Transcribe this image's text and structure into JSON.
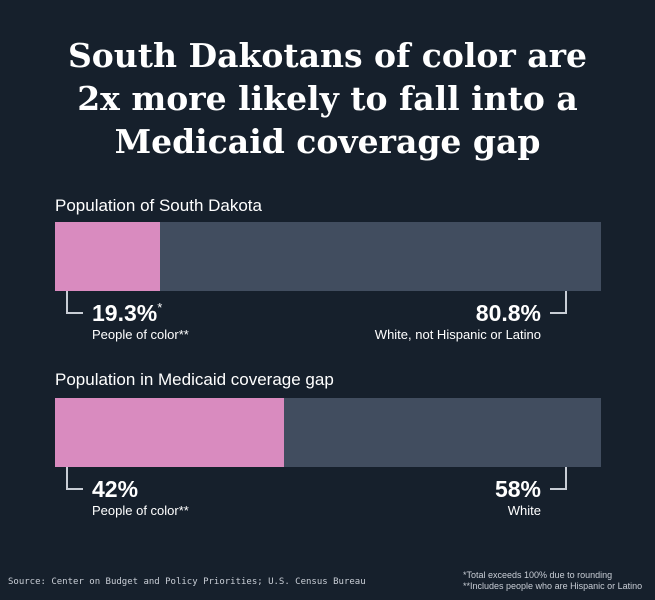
{
  "title_lines": [
    "South Dakotans of color are",
    "2x more likely to fall into a",
    "Medicaid coverage gap"
  ],
  "colors": {
    "background": "#16202c",
    "people_of_color": "#d98bbf",
    "white": "#414d5f",
    "connector": "#c8cdd5",
    "text": "#ffffff"
  },
  "chart_data": [
    {
      "type": "bar",
      "stacked": true,
      "orientation": "horizontal",
      "title": "Population of South Dakota",
      "series": [
        {
          "name": "People of color**",
          "value": 19.3,
          "label": "19.3%",
          "marker": "*"
        },
        {
          "name": "White, not Hispanic or Latino",
          "value": 80.8,
          "label": "80.8%",
          "marker": ""
        }
      ]
    },
    {
      "type": "bar",
      "stacked": true,
      "orientation": "horizontal",
      "title": "Population in Medicaid coverage gap",
      "series": [
        {
          "name": "People of color**",
          "value": 42,
          "label": "42%",
          "marker": ""
        },
        {
          "name": "White",
          "value": 58,
          "label": "58%",
          "marker": ""
        }
      ]
    }
  ],
  "footnotes": [
    "*Total exceeds 100% due to rounding",
    "**Includes people who are Hispanic or Latino"
  ],
  "source": "Source: Center on Budget and Policy Priorities; U.S. Census Bureau"
}
